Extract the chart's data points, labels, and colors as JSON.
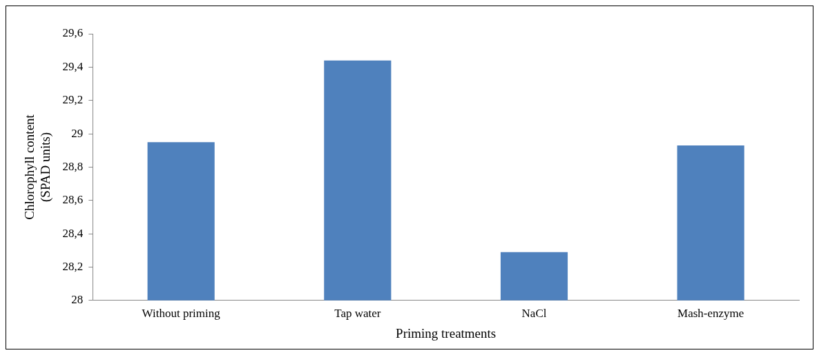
{
  "chart_data": {
    "type": "bar",
    "xlabel": "Priming treatments",
    "ylabel": "Chlorophyll content (SPAD units)",
    "categories": [
      "Without priming",
      "Tap water",
      "NaCl",
      "Mash-enzyme"
    ],
    "values": [
      28.95,
      29.44,
      28.29,
      28.93
    ],
    "color": "#4f81bd",
    "ylim": [
      28,
      29.6
    ],
    "yticks": [
      28,
      {
        "value": 28.2,
        "label": "28,2"
      },
      {
        "value": 28.4,
        "label": "28,4"
      },
      {
        "value": 28.6,
        "label": "28,6"
      },
      {
        "value": 28.8,
        "label": "28,8"
      },
      29,
      {
        "value": 29.2,
        "label": "29,2"
      },
      {
        "value": 29.4,
        "label": "29,4"
      },
      {
        "value": 29.6,
        "label": "29,6"
      }
    ],
    "grid": false,
    "legend": false
  }
}
